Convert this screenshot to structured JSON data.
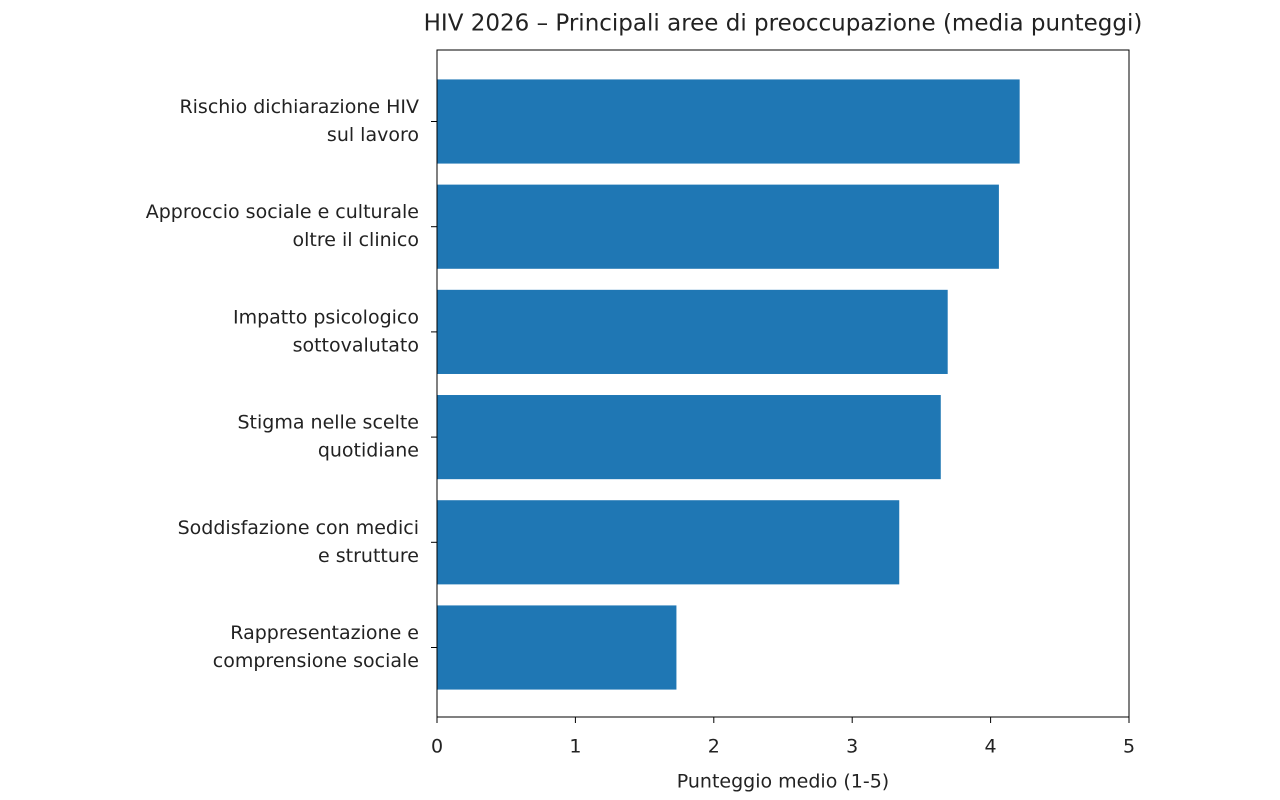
{
  "chart_data": {
    "type": "barh",
    "title": "HIV 2026 – Principali aree di preoccupazione (media punteggi)",
    "x_label": "Punteggio medio (1-5)",
    "categories": [
      [
        "Rischio dichiarazione HIV",
        "sul lavoro"
      ],
      [
        "Approccio sociale e culturale",
        "oltre il clinico"
      ],
      [
        "Impatto psicologico",
        "sottovalutato"
      ],
      [
        "Stigma nelle scelte",
        "quotidiane"
      ],
      [
        "Soddisfazione con medici",
        "e strutture"
      ],
      [
        "Rappresentazione e",
        "comprensione sociale"
      ]
    ],
    "values": [
      4.21,
      4.06,
      3.69,
      3.64,
      3.34,
      1.73
    ],
    "color": "#1f77b4",
    "xlim": [
      0,
      5
    ],
    "xticks": [
      0,
      1,
      2,
      3,
      4,
      5
    ]
  }
}
